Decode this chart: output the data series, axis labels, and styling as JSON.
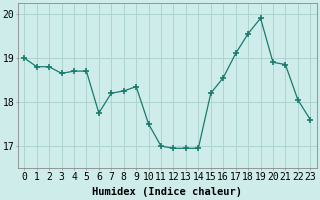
{
  "x": [
    0,
    1,
    2,
    3,
    4,
    5,
    6,
    7,
    8,
    9,
    10,
    11,
    12,
    13,
    14,
    15,
    16,
    17,
    18,
    19,
    20,
    21,
    22,
    23
  ],
  "y": [
    19.0,
    18.8,
    18.8,
    18.65,
    18.7,
    18.7,
    17.75,
    18.2,
    18.25,
    18.35,
    17.5,
    17.0,
    16.95,
    16.95,
    16.95,
    18.2,
    18.55,
    19.1,
    19.55,
    19.9,
    18.9,
    18.85,
    18.05,
    17.6
  ],
  "line_color": "#1a7a6e",
  "marker": "+",
  "marker_size": 5,
  "bg_color": "#ceecea",
  "grid_color": "#aed4d0",
  "xlabel": "Humidex (Indice chaleur)",
  "ylabel": "",
  "ylim": [
    16.5,
    20.25
  ],
  "yticks": [
    17,
    18,
    19,
    20
  ],
  "xticks": [
    0,
    1,
    2,
    3,
    4,
    5,
    6,
    7,
    8,
    9,
    10,
    11,
    12,
    13,
    14,
    15,
    16,
    17,
    18,
    19,
    20,
    21,
    22,
    23
  ],
  "xlabel_fontsize": 7.5,
  "tick_fontsize": 7
}
